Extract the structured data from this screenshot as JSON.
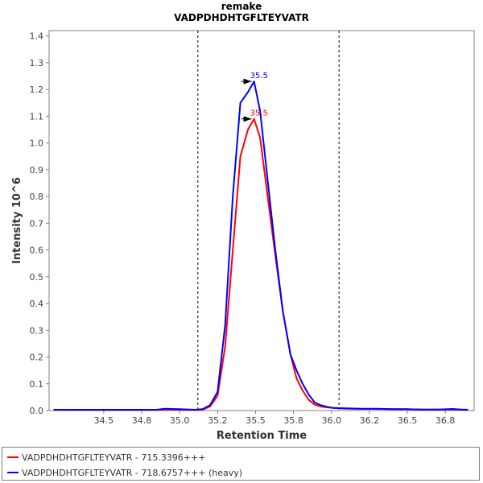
{
  "chart_data": {
    "type": "line",
    "title": "remake",
    "subtitle": "VADPDHDHTGFLTEYVATR",
    "xlabel": "Retention Time",
    "ylabel": "Intensity 10^6",
    "xlim": [
      34.14,
      36.94
    ],
    "ylim": [
      0.0,
      1.42
    ],
    "xticks": [
      "34.5",
      "34.8",
      "35.0",
      "35.2",
      "35.5",
      "35.8",
      "36.0",
      "36.2",
      "36.5",
      "36.8"
    ],
    "xtick_values": [
      34.5,
      34.75,
      35.0,
      35.25,
      35.5,
      35.75,
      36.0,
      36.25,
      36.5,
      36.75
    ],
    "yticks": [
      "0.0",
      "0.1",
      "0.2",
      "0.3",
      "0.4",
      "0.5",
      "0.6",
      "0.7",
      "0.8",
      "0.9",
      "1.0",
      "1.1",
      "1.2",
      "1.3",
      "1.4"
    ],
    "ytick_values": [
      0.0,
      0.1,
      0.2,
      0.3,
      0.4,
      0.5,
      0.6,
      0.7,
      0.8,
      0.9,
      1.0,
      1.1,
      1.2,
      1.3,
      1.4
    ],
    "vertical_lines": [
      35.12,
      36.05
    ],
    "grid": false,
    "legend_position": "bottom",
    "series": [
      {
        "name": "VADPDHDHTGFLTEYVATR - 715.3396+++",
        "color": "#ff0000",
        "peak_label": "35.5",
        "peak": [
          35.49,
          1.09
        ],
        "x": [
          34.17,
          34.3,
          34.5,
          34.7,
          34.85,
          34.9,
          35.0,
          35.1,
          35.15,
          35.2,
          35.25,
          35.3,
          35.35,
          35.4,
          35.45,
          35.49,
          35.53,
          35.58,
          35.63,
          35.68,
          35.73,
          35.77,
          35.81,
          35.85,
          35.89,
          35.93,
          35.97,
          36.01,
          36.05,
          36.1,
          36.2,
          36.3,
          36.4,
          36.5,
          36.6,
          36.7,
          36.8,
          36.85,
          36.9
        ],
        "y": [
          0.002,
          0.002,
          0.002,
          0.002,
          0.002,
          0.004,
          0.003,
          0.002,
          0.003,
          0.015,
          0.055,
          0.24,
          0.6,
          0.95,
          1.05,
          1.09,
          1.02,
          0.8,
          0.58,
          0.37,
          0.21,
          0.12,
          0.075,
          0.04,
          0.022,
          0.015,
          0.012,
          0.01,
          0.009,
          0.007,
          0.006,
          0.006,
          0.005,
          0.005,
          0.004,
          0.004,
          0.004,
          0.004,
          0.003
        ]
      },
      {
        "name": "VADPDHDHTGFLTEYVATR - 718.6757+++ (heavy)",
        "color": "#0000ff",
        "peak_label": "35.5",
        "peak": [
          35.49,
          1.23
        ],
        "x": [
          34.17,
          34.3,
          34.5,
          34.7,
          34.85,
          34.9,
          35.0,
          35.1,
          35.15,
          35.2,
          35.25,
          35.3,
          35.35,
          35.4,
          35.45,
          35.49,
          35.53,
          35.58,
          35.63,
          35.68,
          35.73,
          35.77,
          35.81,
          35.85,
          35.89,
          35.93,
          35.97,
          36.01,
          36.05,
          36.1,
          36.2,
          36.3,
          36.4,
          36.5,
          36.6,
          36.7,
          36.8,
          36.85,
          36.9
        ],
        "y": [
          0.003,
          0.003,
          0.003,
          0.003,
          0.003,
          0.007,
          0.005,
          0.003,
          0.005,
          0.02,
          0.07,
          0.32,
          0.8,
          1.15,
          1.19,
          1.23,
          1.12,
          0.86,
          0.6,
          0.37,
          0.21,
          0.15,
          0.1,
          0.06,
          0.03,
          0.02,
          0.014,
          0.01,
          0.009,
          0.008,
          0.007,
          0.007,
          0.005,
          0.005,
          0.004,
          0.004,
          0.006,
          0.004,
          0.003
        ]
      }
    ]
  }
}
